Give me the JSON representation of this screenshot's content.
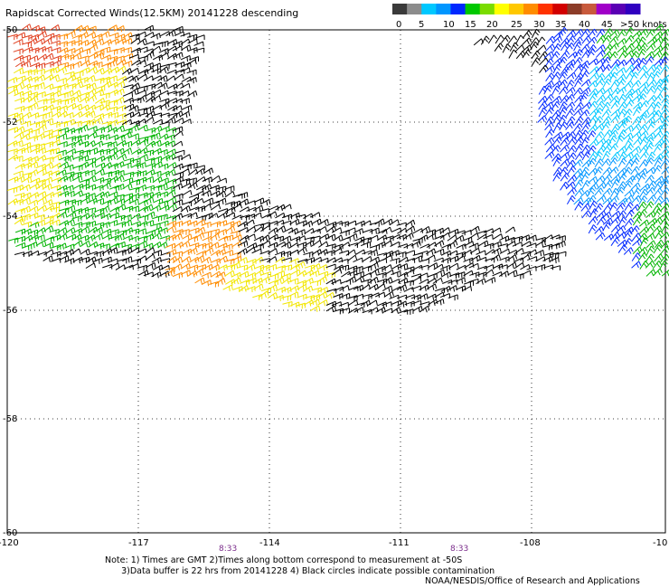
{
  "title": "Rapidscat Corrected Winds(12.5KM) 20141228 descending",
  "colorbar": {
    "colors": [
      "#3a3a3a",
      "#8c8c8c",
      "#00c8ff",
      "#0096ff",
      "#0028ff",
      "#00c800",
      "#7adc00",
      "#ffff00",
      "#ffc800",
      "#ff8c00",
      "#ff3200",
      "#d20000",
      "#8c3c28",
      "#c85a3c",
      "#a000c8",
      "#5a00b4",
      "#3000c0"
    ],
    "labels": [
      "0",
      "5",
      "10",
      "15",
      "20",
      "25",
      "30",
      "35",
      "40",
      "45",
      ">50 knots"
    ]
  },
  "map": {
    "lat_labels": [
      "-50",
      "-52",
      "-54",
      "-56",
      "-58",
      "-60"
    ],
    "lon_labels": [
      "-120",
      "-117",
      "-114",
      "-111",
      "-108",
      "-10"
    ],
    "time_labels": [
      "8:33",
      "8:33"
    ]
  },
  "notes": {
    "line1": "Note: 1) Times are GMT 2)Times along bottom correspond to measurement at -50S",
    "line2": "      3)Data buffer is 22 hrs from 20141228 4) Black circles indicate possible contamination"
  },
  "credit": "NOAA/NESDIS/Office of Research and Applications"
}
